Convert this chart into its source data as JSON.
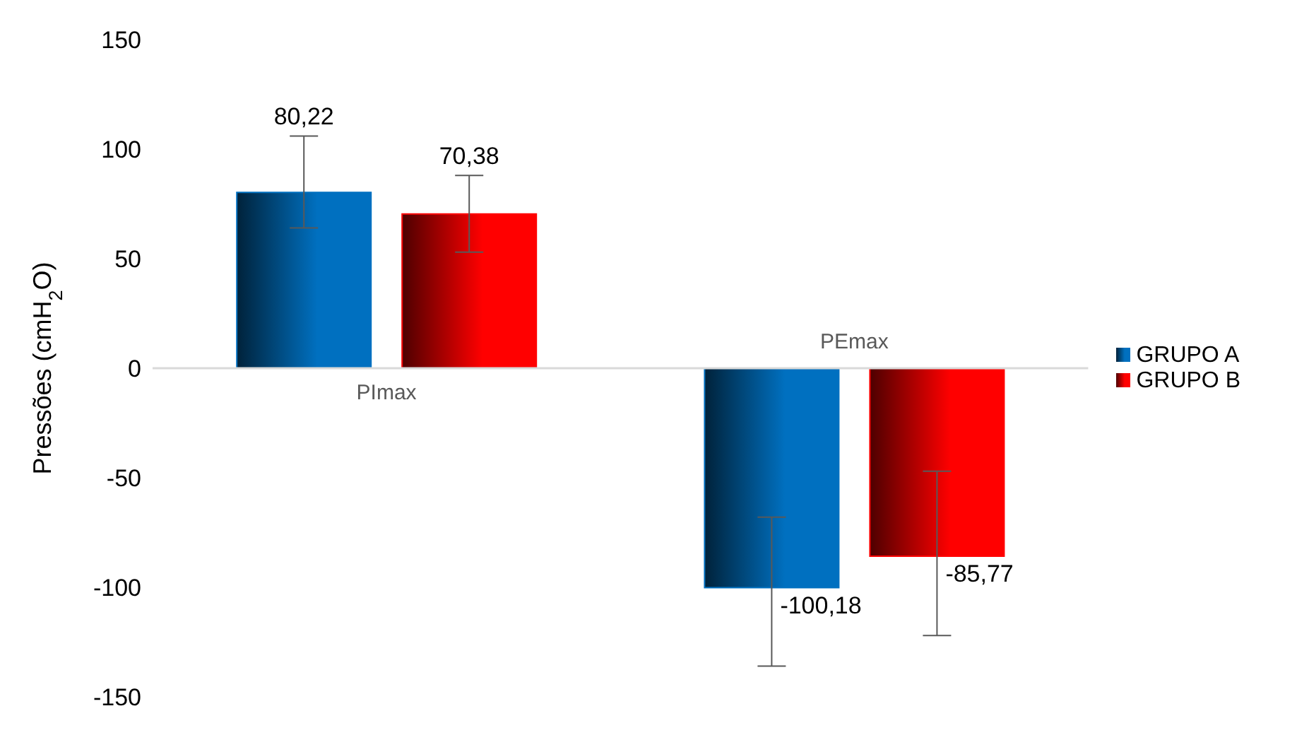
{
  "chart_data": {
    "type": "bar",
    "ylabel": "Pressões (cmH$_{2}$O)",
    "categories": [
      "PImax",
      "PEmax"
    ],
    "series": [
      {
        "name": "GRUPO A",
        "color": "#0070c0",
        "values": [
          80.22,
          -100.18
        ],
        "errors": [
          [
            64,
            106
          ],
          [
            -136,
            -68
          ]
        ],
        "value_labels": [
          "80,22",
          "-100,18"
        ]
      },
      {
        "name": "GRUPO B",
        "color": "#ff0000",
        "values": [
          70.38,
          -85.77
        ],
        "errors": [
          [
            53,
            88
          ],
          [
            -122,
            -47
          ]
        ],
        "value_labels": [
          "70,38",
          "-85,77"
        ]
      }
    ],
    "ylim": [
      -150,
      150
    ],
    "yticks": [
      -150,
      -100,
      -50,
      0,
      50,
      100,
      150
    ],
    "legend": "right"
  }
}
